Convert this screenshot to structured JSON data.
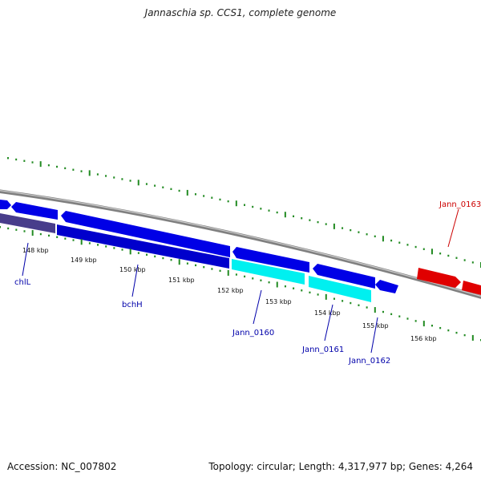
{
  "title": "Jannaschia sp. CCS1, complete genome",
  "footer": {
    "accession": "Accession: NC_007802",
    "summary": "Topology: circular; Length: 4,317,977 bp; Genes: 4,264"
  },
  "scale": {
    "tick_color": "#228b22",
    "labels": [
      "148 kbp",
      "149 kbp",
      "150 kbp",
      "151 kbp",
      "152 kbp",
      "153 kbp",
      "154 kbp",
      "155 kbp",
      "156 kbp"
    ]
  },
  "colors": {
    "backbone": "#808080",
    "forward_gene": "#e00000",
    "reverse_gene": "#0000e6",
    "cds": "#0000cc",
    "highlight": "#00f0f0",
    "shaded": "#483d8b",
    "forward_label": "#cc0000",
    "reverse_label": "#0000aa"
  },
  "gene_labels": {
    "chlL": "chlL",
    "bchH": "bchH",
    "jann0160": "Jann_0160",
    "jann0161": "Jann_0161",
    "jann0162": "Jann_0162",
    "jann0163": "Jann_0163"
  }
}
